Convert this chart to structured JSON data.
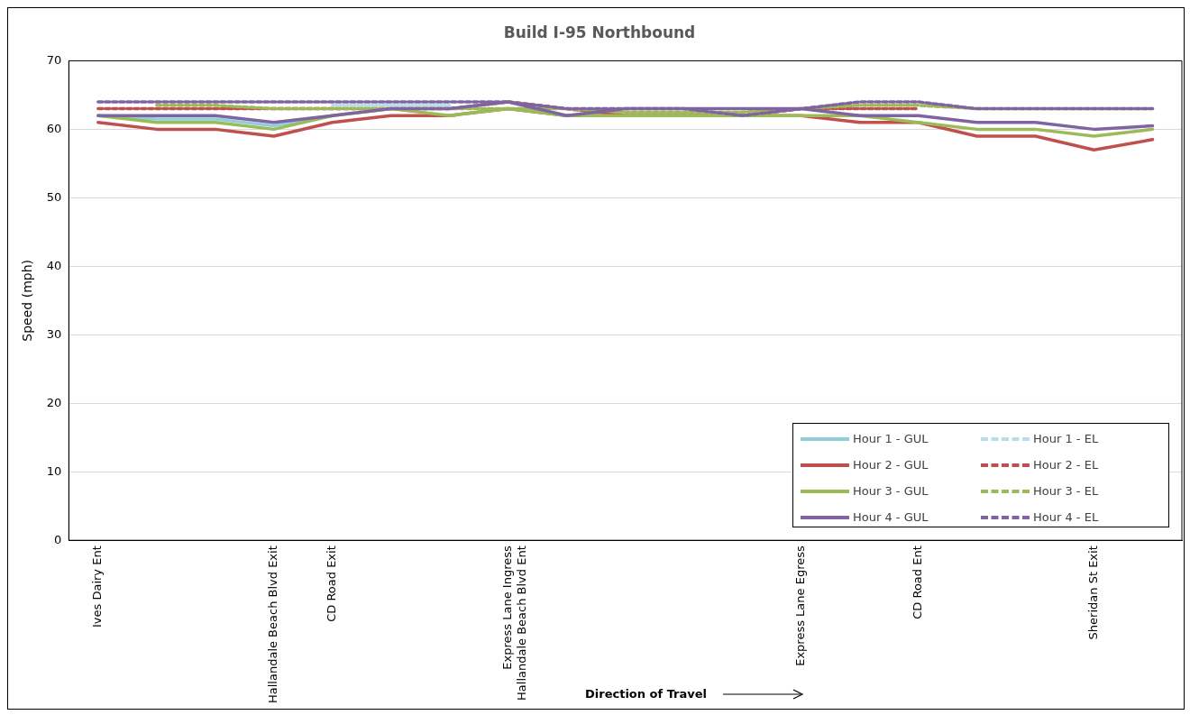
{
  "chart_data": {
    "type": "line",
    "title": "Build I-95 Northbound",
    "ylabel": "Speed (mph)",
    "categories": [
      "Ives Dairy Ent",
      null,
      null,
      "Hallandale Beach Blvd Exit",
      "CD Road Exit",
      null,
      null,
      "Express Lane Ingress\nHallandale Beach Blvd Ent",
      null,
      null,
      null,
      null,
      "Express Lane Egress",
      null,
      "CD Road Ent",
      null,
      null,
      "Sheridan St Exit",
      null
    ],
    "ylim": [
      0,
      70
    ],
    "yticks": [
      0,
      10,
      20,
      30,
      40,
      50,
      60,
      70
    ],
    "series": [
      {
        "name": "Hour 1 - GUL",
        "color": "#92cddc",
        "line_style": "solid",
        "values": [
          62,
          61.5,
          61.5,
          60.5,
          62,
          null,
          null,
          null,
          null,
          null,
          null,
          null,
          null,
          null,
          null,
          null,
          null,
          null,
          null
        ]
      },
      {
        "name": "Hour 1 - EL",
        "color": "#b7dee8",
        "line_style": "dashed",
        "values": [
          null,
          null,
          null,
          null,
          63.5,
          63.5,
          63.5,
          null,
          null,
          null,
          null,
          null,
          null,
          null,
          null,
          null,
          null,
          null,
          null
        ]
      },
      {
        "name": "Hour 2 - GUL",
        "color": "#c0504d",
        "line_style": "solid",
        "values": [
          61,
          60,
          60,
          59,
          61,
          62,
          62,
          63,
          62,
          62,
          62,
          62,
          62,
          61,
          61,
          59,
          59,
          57,
          58.5
        ]
      },
      {
        "name": "Hour 2 - EL",
        "color": "#c0504d",
        "line_style": "dashed",
        "values": [
          63,
          63,
          63,
          63,
          63,
          63,
          63,
          64,
          63,
          62,
          62,
          62,
          63,
          63,
          63,
          null,
          null,
          null,
          null
        ]
      },
      {
        "name": "Hour 3 - GUL",
        "color": "#9bbb59",
        "line_style": "solid",
        "values": [
          62,
          61,
          61,
          60,
          62,
          63,
          62,
          63,
          62,
          62,
          62,
          62,
          62,
          62,
          61,
          60,
          60,
          59,
          60
        ]
      },
      {
        "name": "Hour 3 - EL",
        "color": "#9bbb59",
        "line_style": "dashed",
        "values": [
          null,
          63.5,
          63.5,
          63,
          63,
          63,
          63,
          63,
          63,
          62.5,
          62.5,
          62.5,
          63,
          63.5,
          63.5,
          63,
          63,
          63,
          63
        ]
      },
      {
        "name": "Hour 4 - GUL",
        "color": "#8064a2",
        "line_style": "solid",
        "values": [
          62,
          62,
          62,
          61,
          62,
          63,
          63,
          64,
          62,
          63,
          63,
          63,
          63,
          62,
          62,
          61,
          61,
          60,
          60.5
        ]
      },
      {
        "name": "Hour 4 - EL",
        "color": "#8064a2",
        "line_style": "dashed",
        "values": [
          64,
          64,
          64,
          64,
          64,
          64,
          64,
          64,
          63,
          63,
          63,
          62,
          63,
          64,
          64,
          63,
          63,
          63,
          63
        ]
      }
    ],
    "annotations": [
      "Direction of Travel"
    ],
    "grid": "y",
    "legend": "bottom right",
    "marker": "none"
  }
}
